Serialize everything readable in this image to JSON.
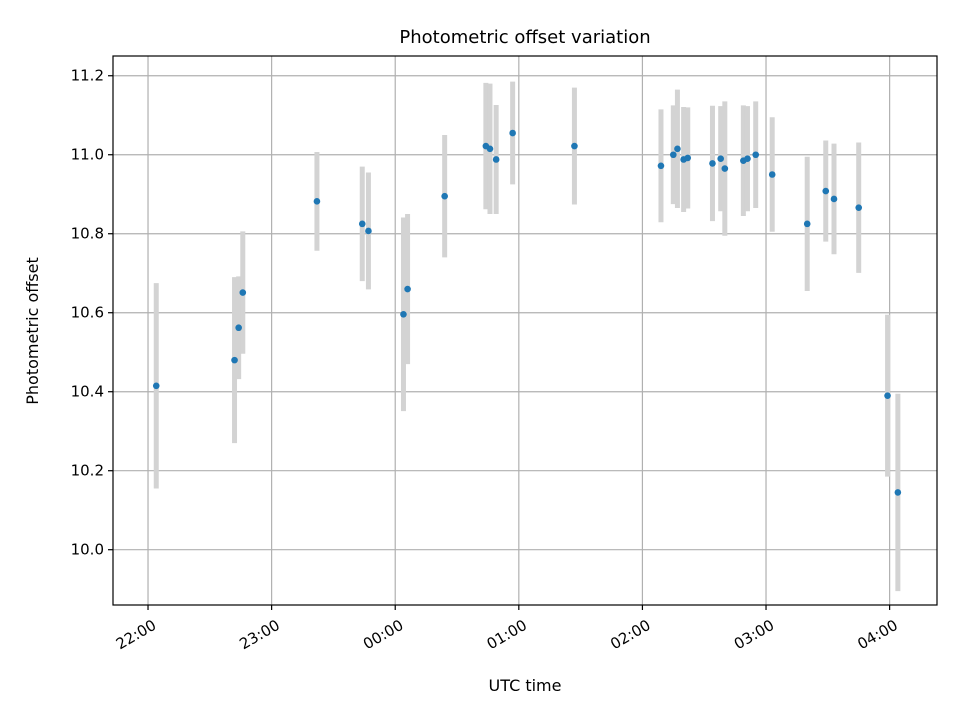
{
  "chart_data": {
    "type": "scatter",
    "title": "Photometric offset variation",
    "xlabel": "UTC time",
    "ylabel": "Photometric offset",
    "grid": true,
    "x_is_time": true,
    "x_range": [
      "21:43",
      "04:23"
    ],
    "ylim": [
      9.86,
      11.25
    ],
    "xticks": [
      "22:00",
      "23:00",
      "00:00",
      "01:00",
      "02:00",
      "03:00",
      "04:00"
    ],
    "yticks": [
      10.0,
      10.2,
      10.4,
      10.6,
      10.8,
      11.0,
      11.2
    ],
    "colors": {
      "point": "#1f77b4",
      "errorbar": "#d3d3d3",
      "grid": "#b0b0b0"
    },
    "series": [
      {
        "points": [
          {
            "time": "22:04",
            "y": 10.415,
            "err": 0.26
          },
          {
            "time": "22:42",
            "y": 10.48,
            "err": 0.21
          },
          {
            "time": "22:44",
            "y": 10.562,
            "err": 0.13
          },
          {
            "time": "22:46",
            "y": 10.651,
            "err": 0.155
          },
          {
            "time": "23:22",
            "y": 10.882,
            "err": 0.125
          },
          {
            "time": "23:44",
            "y": 10.825,
            "err": 0.145
          },
          {
            "time": "23:47",
            "y": 10.807,
            "err": 0.148
          },
          {
            "time": "00:04",
            "y": 10.596,
            "err": 0.245
          },
          {
            "time": "00:06",
            "y": 10.66,
            "err": 0.19
          },
          {
            "time": "00:24",
            "y": 10.895,
            "err": 0.155
          },
          {
            "time": "00:44",
            "y": 11.022,
            "err": 0.16
          },
          {
            "time": "00:46",
            "y": 11.015,
            "err": 0.165
          },
          {
            "time": "00:49",
            "y": 10.988,
            "err": 0.138
          },
          {
            "time": "00:57",
            "y": 11.055,
            "err": 0.13
          },
          {
            "time": "01:27",
            "y": 11.022,
            "err": 0.148
          },
          {
            "time": "02:09",
            "y": 10.972,
            "err": 0.143
          },
          {
            "time": "02:15",
            "y": 11.0,
            "err": 0.125
          },
          {
            "time": "02:17",
            "y": 11.015,
            "err": 0.15
          },
          {
            "time": "02:20",
            "y": 10.988,
            "err": 0.133
          },
          {
            "time": "02:22",
            "y": 10.992,
            "err": 0.128
          },
          {
            "time": "02:34",
            "y": 10.978,
            "err": 0.146
          },
          {
            "time": "02:38",
            "y": 10.99,
            "err": 0.133
          },
          {
            "time": "02:40",
            "y": 10.965,
            "err": 0.17
          },
          {
            "time": "02:49",
            "y": 10.985,
            "err": 0.14
          },
          {
            "time": "02:51",
            "y": 10.99,
            "err": 0.133
          },
          {
            "time": "02:55",
            "y": 11.0,
            "err": 0.135
          },
          {
            "time": "03:03",
            "y": 10.95,
            "err": 0.145
          },
          {
            "time": "03:20",
            "y": 10.825,
            "err": 0.17
          },
          {
            "time": "03:29",
            "y": 10.908,
            "err": 0.128
          },
          {
            "time": "03:33",
            "y": 10.888,
            "err": 0.14
          },
          {
            "time": "03:45",
            "y": 10.866,
            "err": 0.165
          },
          {
            "time": "03:59",
            "y": 10.39,
            "err": 0.205
          },
          {
            "time": "04:04",
            "y": 10.145,
            "err": 0.25
          }
        ]
      }
    ]
  }
}
